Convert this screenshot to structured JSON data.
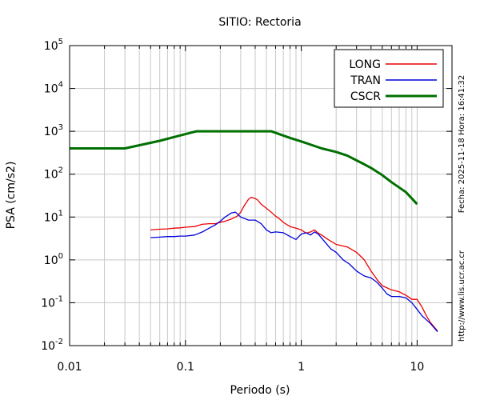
{
  "chart_data": {
    "type": "line",
    "title": "SITIO: Rectoria",
    "xlabel": "Periodo (s)",
    "ylabel": "PSA (cm/s2)",
    "xscale": "log",
    "yscale": "log",
    "xlim": [
      0.01,
      20
    ],
    "ylim": [
      0.01,
      100000
    ],
    "grid": true,
    "legend_position": "top-right",
    "x_ticks": [
      {
        "value": 0.01,
        "label": "0.01"
      },
      {
        "value": 0.1,
        "label": "0.1"
      },
      {
        "value": 1,
        "label": "1"
      },
      {
        "value": 10,
        "label": "10"
      }
    ],
    "y_ticks": [
      {
        "value": 0.01,
        "base": "10",
        "exp": "-2"
      },
      {
        "value": 0.1,
        "base": "10",
        "exp": "-1"
      },
      {
        "value": 1,
        "base": "10",
        "exp": "0"
      },
      {
        "value": 10,
        "base": "10",
        "exp": "1"
      },
      {
        "value": 100,
        "base": "10",
        "exp": "2"
      },
      {
        "value": 1000,
        "base": "10",
        "exp": "3"
      },
      {
        "value": 10000,
        "base": "10",
        "exp": "4"
      },
      {
        "value": 100000,
        "base": "10",
        "exp": "5"
      }
    ],
    "series": [
      {
        "name": "LONG",
        "color": "#ee0000",
        "points": [
          [
            0.05,
            5.0
          ],
          [
            0.06,
            5.2
          ],
          [
            0.07,
            5.3
          ],
          [
            0.08,
            5.5
          ],
          [
            0.09,
            5.6
          ],
          [
            0.1,
            5.8
          ],
          [
            0.12,
            6.0
          ],
          [
            0.14,
            6.8
          ],
          [
            0.16,
            7.0
          ],
          [
            0.18,
            7.0
          ],
          [
            0.2,
            7.5
          ],
          [
            0.22,
            8.0
          ],
          [
            0.25,
            9.0
          ],
          [
            0.28,
            10.5
          ],
          [
            0.3,
            13.0
          ],
          [
            0.32,
            18.0
          ],
          [
            0.35,
            26.0
          ],
          [
            0.37,
            29.0
          ],
          [
            0.4,
            27.0
          ],
          [
            0.42,
            25.0
          ],
          [
            0.45,
            20.0
          ],
          [
            0.5,
            16.0
          ],
          [
            0.55,
            13.0
          ],
          [
            0.6,
            10.5
          ],
          [
            0.65,
            9.0
          ],
          [
            0.7,
            7.5
          ],
          [
            0.8,
            6.0
          ],
          [
            0.9,
            5.5
          ],
          [
            1.0,
            5.0
          ],
          [
            1.1,
            4.2
          ],
          [
            1.2,
            4.5
          ],
          [
            1.3,
            5.0
          ],
          [
            1.4,
            4.2
          ],
          [
            1.5,
            3.8
          ],
          [
            1.7,
            3.0
          ],
          [
            2.0,
            2.3
          ],
          [
            2.5,
            2.0
          ],
          [
            3.0,
            1.5
          ],
          [
            3.5,
            1.0
          ],
          [
            4.0,
            0.55
          ],
          [
            4.5,
            0.35
          ],
          [
            5.0,
            0.25
          ],
          [
            6.0,
            0.2
          ],
          [
            7.0,
            0.18
          ],
          [
            8.0,
            0.15
          ],
          [
            9.0,
            0.12
          ],
          [
            10.0,
            0.12
          ],
          [
            11.0,
            0.08
          ],
          [
            12.0,
            0.05
          ],
          [
            13.0,
            0.035
          ],
          [
            15.0,
            0.022
          ]
        ]
      },
      {
        "name": "TRAN",
        "color": "#0000dd",
        "points": [
          [
            0.05,
            3.3
          ],
          [
            0.06,
            3.4
          ],
          [
            0.07,
            3.5
          ],
          [
            0.08,
            3.5
          ],
          [
            0.09,
            3.6
          ],
          [
            0.1,
            3.6
          ],
          [
            0.12,
            3.8
          ],
          [
            0.14,
            4.5
          ],
          [
            0.16,
            5.5
          ],
          [
            0.18,
            6.5
          ],
          [
            0.2,
            8.0
          ],
          [
            0.22,
            10.0
          ],
          [
            0.25,
            12.5
          ],
          [
            0.27,
            13.0
          ],
          [
            0.3,
            10.0
          ],
          [
            0.35,
            8.5
          ],
          [
            0.4,
            8.5
          ],
          [
            0.45,
            7.0
          ],
          [
            0.5,
            5.0
          ],
          [
            0.55,
            4.3
          ],
          [
            0.6,
            4.5
          ],
          [
            0.7,
            4.3
          ],
          [
            0.8,
            3.5
          ],
          [
            0.9,
            3.0
          ],
          [
            1.0,
            4.0
          ],
          [
            1.1,
            4.3
          ],
          [
            1.2,
            3.8
          ],
          [
            1.3,
            4.5
          ],
          [
            1.4,
            4.0
          ],
          [
            1.6,
            2.6
          ],
          [
            1.8,
            1.8
          ],
          [
            2.0,
            1.5
          ],
          [
            2.3,
            1.0
          ],
          [
            2.6,
            0.8
          ],
          [
            3.0,
            0.55
          ],
          [
            3.5,
            0.42
          ],
          [
            4.0,
            0.38
          ],
          [
            4.5,
            0.3
          ],
          [
            5.0,
            0.22
          ],
          [
            5.5,
            0.16
          ],
          [
            6.0,
            0.14
          ],
          [
            7.0,
            0.14
          ],
          [
            8.0,
            0.13
          ],
          [
            9.0,
            0.1
          ],
          [
            10.0,
            0.07
          ],
          [
            11.0,
            0.05
          ],
          [
            12.0,
            0.04
          ],
          [
            13.0,
            0.033
          ],
          [
            15.0,
            0.021
          ]
        ]
      },
      {
        "name": "CSCR",
        "color": "#007000",
        "points": [
          [
            0.01,
            400
          ],
          [
            0.03,
            400
          ],
          [
            0.06,
            600
          ],
          [
            0.09,
            800
          ],
          [
            0.125,
            1000
          ],
          [
            0.55,
            1000
          ],
          [
            0.8,
            700
          ],
          [
            1.0,
            580
          ],
          [
            1.5,
            400
          ],
          [
            2.0,
            330
          ],
          [
            2.5,
            270
          ],
          [
            3.0,
            210
          ],
          [
            3.5,
            170
          ],
          [
            4.0,
            140
          ],
          [
            5.0,
            95
          ],
          [
            6.0,
            65
          ],
          [
            8.0,
            38
          ],
          [
            10.0,
            20
          ]
        ]
      }
    ]
  },
  "side_labels": {
    "timestamp": "Fecha: 2025-11-18 Hora: 16:41:32",
    "url": "http://www.lis.ucr.ac.cr"
  }
}
